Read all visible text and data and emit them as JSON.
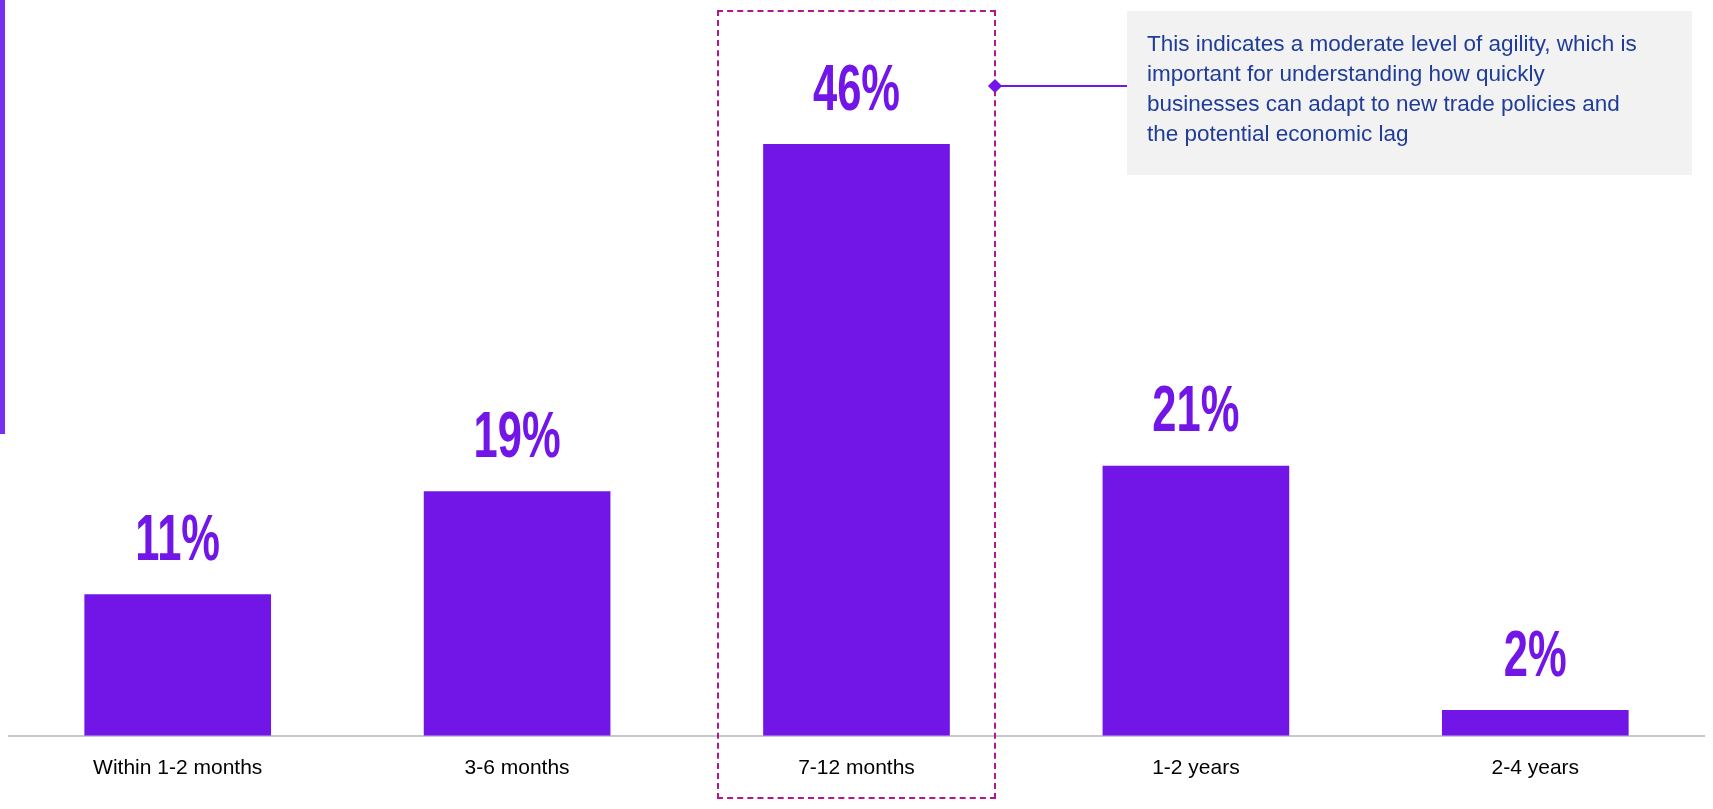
{
  "chart_data": {
    "type": "bar",
    "categories": [
      "Within 1-2 months",
      "3-6 months",
      "7-12 months",
      "1-2 years",
      "2-4 years"
    ],
    "values": [
      11,
      19,
      46,
      21,
      2
    ],
    "value_labels": [
      "11%",
      "19%",
      "46%",
      "21%",
      "2%"
    ],
    "color": "#7216e8",
    "grid": false,
    "legend": false,
    "tick_labels": "x",
    "annotations": [
      "This indicates a moderate level of agility, which is important for understanding how quickly businesses can adapt to new trade policies and the potential economic lag"
    ]
  }
}
